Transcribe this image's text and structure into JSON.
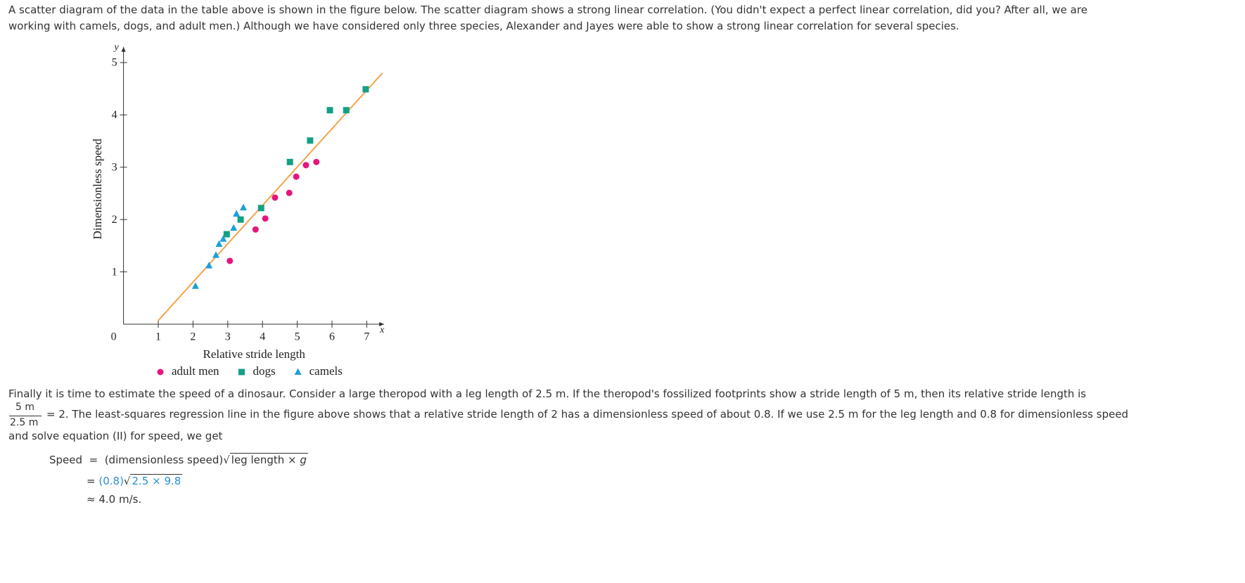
{
  "paragraph1": "A scatter diagram of the data in the table above is shown in the figure below. The scatter diagram shows a strong linear correlation. (You didn't expect a perfect linear correlation, did you? After all, we are working with camels, dogs, and adult men.) Although we have considered only three species, Alexander and Jayes were able to show a strong linear correlation for several species.",
  "chart_data": {
    "type": "scatter",
    "x_label": "Relative stride length",
    "y_label": "Dimensionless speed",
    "x_axis_name": "x",
    "y_axis_name": "y",
    "origin_label": 0,
    "xlim": [
      0,
      7.5
    ],
    "ylim": [
      0,
      5.3
    ],
    "xticks": [
      1,
      2,
      3,
      4,
      5,
      6,
      7
    ],
    "yticks": [
      1,
      2,
      3,
      4,
      5
    ],
    "series": [
      {
        "name": "adult men",
        "color": "#e5157f",
        "marker": "circle",
        "x": [
          3.06,
          3.8,
          4.08,
          4.36,
          4.77,
          4.97,
          5.25,
          5.55
        ],
        "y": [
          1.21,
          1.81,
          2.02,
          2.42,
          2.51,
          2.82,
          3.04,
          3.1
        ]
      },
      {
        "name": "dogs",
        "color": "#13a085",
        "marker": "square",
        "x": [
          2.97,
          3.37,
          3.96,
          4.79,
          5.37,
          5.94,
          6.41,
          6.97
        ],
        "y": [
          1.72,
          2.0,
          2.22,
          3.1,
          3.51,
          4.09,
          4.09,
          4.49
        ]
      },
      {
        "name": "camels",
        "color": "#1ba0d8",
        "marker": "triangle",
        "x": [
          2.07,
          2.46,
          2.66,
          2.75,
          2.87,
          3.17,
          3.25,
          3.45
        ],
        "y": [
          0.73,
          1.12,
          1.32,
          1.53,
          1.63,
          1.84,
          2.11,
          2.23
        ]
      }
    ],
    "regression_line": {
      "color": "#f5a34a",
      "x": [
        1,
        7.45
      ],
      "y": [
        0.07,
        4.8
      ]
    }
  },
  "paragraph2": {
    "part1": "Finally it is time to estimate the speed of a dinosaur. Consider a large theropod with a leg length of 2.5 m. If the theropod's fossilized footprints show a stride length of 5 m, then its relative stride length is",
    "fraction": {
      "numerator": "5 m",
      "denominator": "2.5 m"
    },
    "part2": "= 2. The least-squares regression line in the figure above shows that a relative stride length of 2 has a dimensionless speed of about 0.8. If we use 2.5 m for the leg length and 0.8 for dimensionless speed",
    "part3": "and solve equation (II) for speed, we get"
  },
  "equation": {
    "lhs": "Speed",
    "eq": "=",
    "line1": "(dimensionless speed)",
    "radicand1": "leg length ×",
    "g": "g",
    "line2_eq": "=",
    "line2": "(0.8)",
    "radicand2": "2.5 × 9.8",
    "line3_eq": "≈",
    "line3": "4.0 m/s."
  }
}
